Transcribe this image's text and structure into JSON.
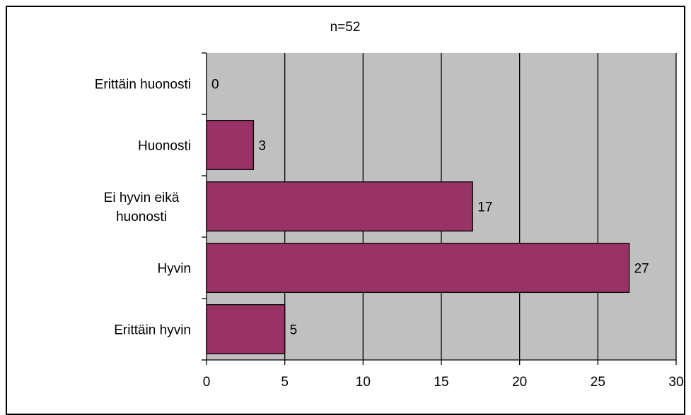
{
  "chart_data": {
    "type": "bar",
    "orientation": "horizontal",
    "title": "n=52",
    "categories": [
      "Erittäin huonosti",
      "Huonosti",
      "Ei hyvin eikä huonosti",
      "Hyvin",
      "Erittäin hyvin"
    ],
    "category_label_lines": [
      [
        "Erittäin huonosti"
      ],
      [
        "Huonosti"
      ],
      [
        "Ei hyvin eikä",
        "huonosti"
      ],
      [
        "Hyvin"
      ],
      [
        "Erittäin hyvin"
      ]
    ],
    "values": [
      0,
      3,
      17,
      27,
      5
    ],
    "data_labels": [
      "0",
      "3",
      "17",
      "27",
      "5"
    ],
    "x_ticks": [
      "0",
      "5",
      "10",
      "15",
      "20",
      "25",
      "30"
    ],
    "xlim": [
      0,
      30
    ],
    "grid": true,
    "legend": "none",
    "colors": {
      "bar": "#993366",
      "plot_background": "#c0c0c0",
      "gridline": "#000000",
      "frame": "#000000"
    }
  }
}
